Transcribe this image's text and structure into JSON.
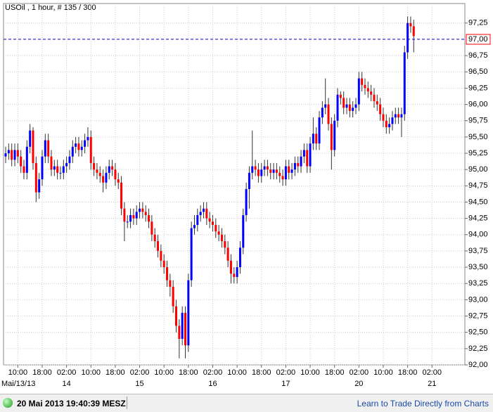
{
  "chart_data": {
    "type": "candlestick",
    "title": "USOil , 1 hour, # 135 / 300",
    "up_color": "#0000ff",
    "down_color": "#ff0000",
    "wick_color": "#333333",
    "grid": true,
    "xlim": [
      -0.7,
      150.8
    ],
    "ylim": [
      92.0,
      97.55
    ],
    "yticks": [
      {
        "value": 92.0,
        "label": "92,00"
      },
      {
        "value": 92.25,
        "label": "92,25"
      },
      {
        "value": 92.5,
        "label": "92,50"
      },
      {
        "value": 92.75,
        "label": "92,75"
      },
      {
        "value": 93.0,
        "label": "93,00"
      },
      {
        "value": 93.25,
        "label": "93,25"
      },
      {
        "value": 93.5,
        "label": "93,50"
      },
      {
        "value": 93.75,
        "label": "93,75"
      },
      {
        "value": 94.0,
        "label": "94,00"
      },
      {
        "value": 94.25,
        "label": "94,25"
      },
      {
        "value": 94.5,
        "label": "94,50"
      },
      {
        "value": 94.75,
        "label": "94,75"
      },
      {
        "value": 95.0,
        "label": "95,00"
      },
      {
        "value": 95.25,
        "label": "95,25"
      },
      {
        "value": 95.5,
        "label": "95,50"
      },
      {
        "value": 95.75,
        "label": "95,75"
      },
      {
        "value": 96.0,
        "label": "96,00"
      },
      {
        "value": 96.25,
        "label": "96,25"
      },
      {
        "value": 96.5,
        "label": "96,50"
      },
      {
        "value": 96.75,
        "label": "96,75"
      },
      {
        "value": 97.25,
        "label": "97,25"
      }
    ],
    "xticks": [
      {
        "value": 4,
        "label": "10:00"
      },
      {
        "value": 12,
        "label": "18:00"
      },
      {
        "value": 20,
        "label": "02:00"
      },
      {
        "value": 28,
        "label": "10:00"
      },
      {
        "value": 36,
        "label": "18:00"
      },
      {
        "value": 44,
        "label": "02:00"
      },
      {
        "value": 52,
        "label": "10:00"
      },
      {
        "value": 60,
        "label": "18:00"
      },
      {
        "value": 68,
        "label": "02:00"
      },
      {
        "value": 76,
        "label": "10:00"
      },
      {
        "value": 84,
        "label": "18:00"
      },
      {
        "value": 92,
        "label": "02:00"
      },
      {
        "value": 100,
        "label": "10:00"
      },
      {
        "value": 108,
        "label": "18:00"
      },
      {
        "value": 116,
        "label": "02:00"
      },
      {
        "value": 124,
        "label": "10:00"
      },
      {
        "value": 132,
        "label": "18:00"
      },
      {
        "value": 140,
        "label": "02:00"
      }
    ],
    "day_labels": [
      {
        "value": 4,
        "label": "Mai/13/13"
      },
      {
        "value": 20,
        "label": "14"
      },
      {
        "value": 44,
        "label": "15"
      },
      {
        "value": 68,
        "label": "16"
      },
      {
        "value": 92,
        "label": "17"
      },
      {
        "value": 116,
        "label": "20"
      },
      {
        "value": 140,
        "label": "21"
      }
    ],
    "current_price": {
      "value": 97.0,
      "label": "97,00",
      "color": "#0000cc"
    },
    "open": [
      95.2,
      95.25,
      95.3,
      95.15,
      95.3,
      95.2,
      95.05,
      94.95,
      95.35,
      95.6,
      95.1,
      94.65,
      94.85,
      95.2,
      95.45,
      95.2,
      95.0,
      95.05,
      94.95,
      94.95,
      95.05,
      95.1,
      95.2,
      95.35,
      95.4,
      95.3,
      95.35,
      95.45,
      95.5,
      95.1,
      95.0,
      94.95,
      94.9,
      94.8,
      94.95,
      95.05,
      95.0,
      94.85,
      94.8,
      94.4,
      94.2,
      94.2,
      94.3,
      94.25,
      94.35,
      94.4,
      94.35,
      94.3,
      94.2,
      94.0,
      93.9,
      93.75,
      93.6,
      93.5,
      93.3,
      93.2,
      92.9,
      92.6,
      92.4,
      92.8,
      92.3,
      93.3,
      94.1,
      94.15,
      94.3,
      94.35,
      94.4,
      94.25,
      94.2,
      94.15,
      94.05,
      94.0,
      93.9,
      93.8,
      93.6,
      93.4,
      93.35,
      93.5,
      93.8,
      94.3,
      94.7,
      94.95,
      95.05,
      95.0,
      94.9,
      95.0,
      95.05,
      95.0,
      94.95,
      95.0,
      94.95,
      94.9,
      94.85,
      95.05,
      94.95,
      95.0,
      95.1,
      95.05,
      95.2,
      95.3,
      95.05,
      95.4,
      95.55,
      95.4,
      95.8,
      95.95,
      96.0,
      95.7,
      95.3,
      95.75,
      96.15,
      96.1,
      95.95,
      96.0,
      95.9,
      95.95,
      96.0,
      96.4,
      96.3,
      96.25,
      96.2,
      96.15,
      96.05,
      96.0,
      95.85,
      95.75,
      95.65,
      95.7,
      95.8,
      95.85,
      95.8,
      95.85,
      96.8,
      97.25,
      97.2
    ],
    "high": [
      95.35,
      95.4,
      95.4,
      95.4,
      95.4,
      95.3,
      95.15,
      95.45,
      95.7,
      95.65,
      95.2,
      94.95,
      95.3,
      95.55,
      95.55,
      95.3,
      95.15,
      95.15,
      95.05,
      95.15,
      95.2,
      95.3,
      95.45,
      95.5,
      95.5,
      95.45,
      95.55,
      95.65,
      95.6,
      95.2,
      95.1,
      95.05,
      95.0,
      95.05,
      95.15,
      95.15,
      95.1,
      94.95,
      94.9,
      94.5,
      94.3,
      94.4,
      94.4,
      94.45,
      94.5,
      94.5,
      94.45,
      94.4,
      94.3,
      94.1,
      94.0,
      93.85,
      93.7,
      93.6,
      93.4,
      93.3,
      93.0,
      92.7,
      92.9,
      92.9,
      93.4,
      94.2,
      94.3,
      94.4,
      94.45,
      94.5,
      94.5,
      94.35,
      94.3,
      94.25,
      94.15,
      94.1,
      94.0,
      93.9,
      93.7,
      93.5,
      93.6,
      93.9,
      94.4,
      94.8,
      95.05,
      95.6,
      95.15,
      95.1,
      95.1,
      95.15,
      95.15,
      95.1,
      95.1,
      95.1,
      95.05,
      95.0,
      95.15,
      95.15,
      95.1,
      95.2,
      95.2,
      95.3,
      95.4,
      95.4,
      95.5,
      95.8,
      95.65,
      95.9,
      96.05,
      96.4,
      96.1,
      95.8,
      95.85,
      96.25,
      96.2,
      96.2,
      96.1,
      96.1,
      96.05,
      96.1,
      96.5,
      96.5,
      96.4,
      96.35,
      96.3,
      96.25,
      96.15,
      96.1,
      95.95,
      95.85,
      95.8,
      95.9,
      95.95,
      95.95,
      95.95,
      96.9,
      97.35,
      97.35,
      97.3
    ],
    "low": [
      95.1,
      95.15,
      95.05,
      95.05,
      95.1,
      94.95,
      94.85,
      94.85,
      95.25,
      95.0,
      94.5,
      94.55,
      94.75,
      95.1,
      95.1,
      94.9,
      94.9,
      94.85,
      94.85,
      94.85,
      94.95,
      95.0,
      95.1,
      95.25,
      95.2,
      95.2,
      95.25,
      95.35,
      95.0,
      94.9,
      94.85,
      94.8,
      94.65,
      94.7,
      94.85,
      94.9,
      94.75,
      94.7,
      94.3,
      93.9,
      94.1,
      94.1,
      94.15,
      94.15,
      94.25,
      94.25,
      94.2,
      94.1,
      93.9,
      93.8,
      93.65,
      93.5,
      93.4,
      93.2,
      93.05,
      92.8,
      92.5,
      92.1,
      92.3,
      92.1,
      92.2,
      93.2,
      94.0,
      94.05,
      94.2,
      94.25,
      94.15,
      94.1,
      94.05,
      93.95,
      93.9,
      93.8,
      93.7,
      93.5,
      93.25,
      93.25,
      93.25,
      93.4,
      93.7,
      94.2,
      94.4,
      94.85,
      94.9,
      94.8,
      94.8,
      94.9,
      94.9,
      94.85,
      94.85,
      94.85,
      94.8,
      94.75,
      94.75,
      94.85,
      94.85,
      94.9,
      94.95,
      94.95,
      95.1,
      94.95,
      94.95,
      95.3,
      95.3,
      95.3,
      95.7,
      95.85,
      95.6,
      95.0,
      95.2,
      95.65,
      96.0,
      95.85,
      95.85,
      95.8,
      95.8,
      95.85,
      95.9,
      96.2,
      96.15,
      96.1,
      96.05,
      95.95,
      95.9,
      95.75,
      95.65,
      95.55,
      95.55,
      95.6,
      95.7,
      95.7,
      95.5,
      95.75,
      96.7,
      97.1,
      96.8
    ],
    "close": [
      95.25,
      95.3,
      95.15,
      95.3,
      95.2,
      95.05,
      94.95,
      95.35,
      95.6,
      95.1,
      94.65,
      94.85,
      95.2,
      95.45,
      95.2,
      95.0,
      95.05,
      94.95,
      94.95,
      95.05,
      95.1,
      95.2,
      95.35,
      95.4,
      95.3,
      95.35,
      95.45,
      95.5,
      95.1,
      95.0,
      94.95,
      94.9,
      94.8,
      94.95,
      95.05,
      95.0,
      94.85,
      94.8,
      94.4,
      94.2,
      94.2,
      94.3,
      94.25,
      94.35,
      94.4,
      94.35,
      94.3,
      94.2,
      94.0,
      93.9,
      93.75,
      93.6,
      93.5,
      93.3,
      93.2,
      92.9,
      92.6,
      92.4,
      92.8,
      92.3,
      93.3,
      94.1,
      94.15,
      94.3,
      94.35,
      94.4,
      94.25,
      94.2,
      94.15,
      94.05,
      94.0,
      93.9,
      93.8,
      93.6,
      93.4,
      93.35,
      93.5,
      93.8,
      94.3,
      94.7,
      94.95,
      95.05,
      95.0,
      94.9,
      95.0,
      95.05,
      95.0,
      94.95,
      95.0,
      94.95,
      94.9,
      94.85,
      95.05,
      94.95,
      95.0,
      95.1,
      95.05,
      95.2,
      95.3,
      95.05,
      95.4,
      95.55,
      95.4,
      95.8,
      95.95,
      96.0,
      95.7,
      95.3,
      95.75,
      96.15,
      96.1,
      95.95,
      96.0,
      95.9,
      95.95,
      96.0,
      96.4,
      96.3,
      96.25,
      96.2,
      96.15,
      96.05,
      96.0,
      95.85,
      95.75,
      95.65,
      95.7,
      95.8,
      95.85,
      95.8,
      95.85,
      96.8,
      97.25,
      97.2,
      97.05
    ]
  },
  "footer": {
    "timestamp": "20 Mai 2013 19:40:39 MESZ",
    "link": "Learn to Trade Directly from Charts"
  }
}
